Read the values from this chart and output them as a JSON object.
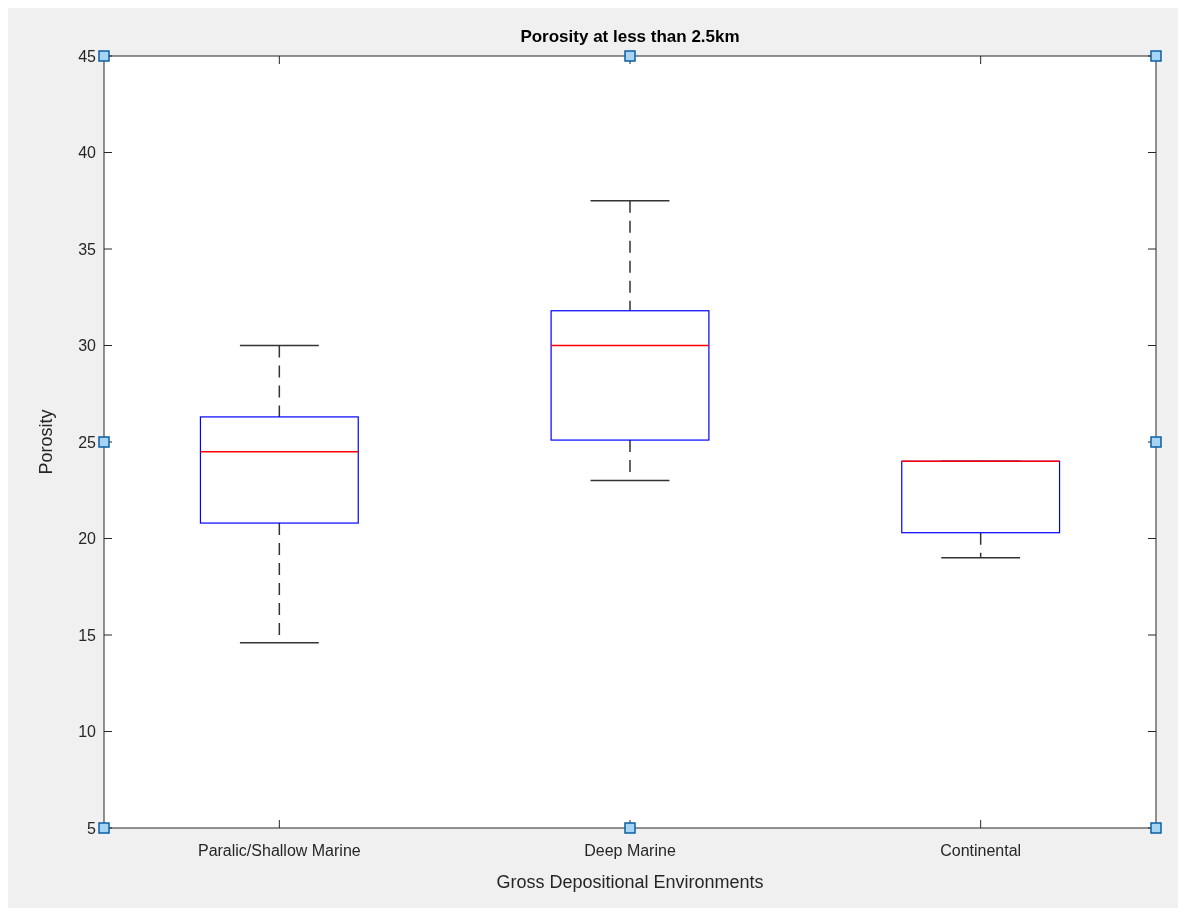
{
  "chart_data": {
    "type": "box",
    "title": "Porosity at less than 2.5km",
    "xlabel": "Gross Depositional Environments",
    "ylabel": "Porosity",
    "categories": [
      "Paralic/Shallow Marine",
      "Deep Marine",
      "Continental"
    ],
    "boxes": [
      {
        "low": 14.6,
        "q1": 20.8,
        "median": 24.5,
        "q3": 26.3,
        "high": 30
      },
      {
        "low": 23,
        "q1": 25.1,
        "median": 30,
        "q3": 31.8,
        "high": 37.5
      },
      {
        "low": 19,
        "q1": 20.3,
        "median": 24,
        "q3": 24,
        "high": 24
      }
    ],
    "ylim": [
      5,
      45
    ],
    "yticks": [
      5,
      10,
      15,
      20,
      25,
      30,
      35,
      40,
      45
    ],
    "grid": false
  }
}
